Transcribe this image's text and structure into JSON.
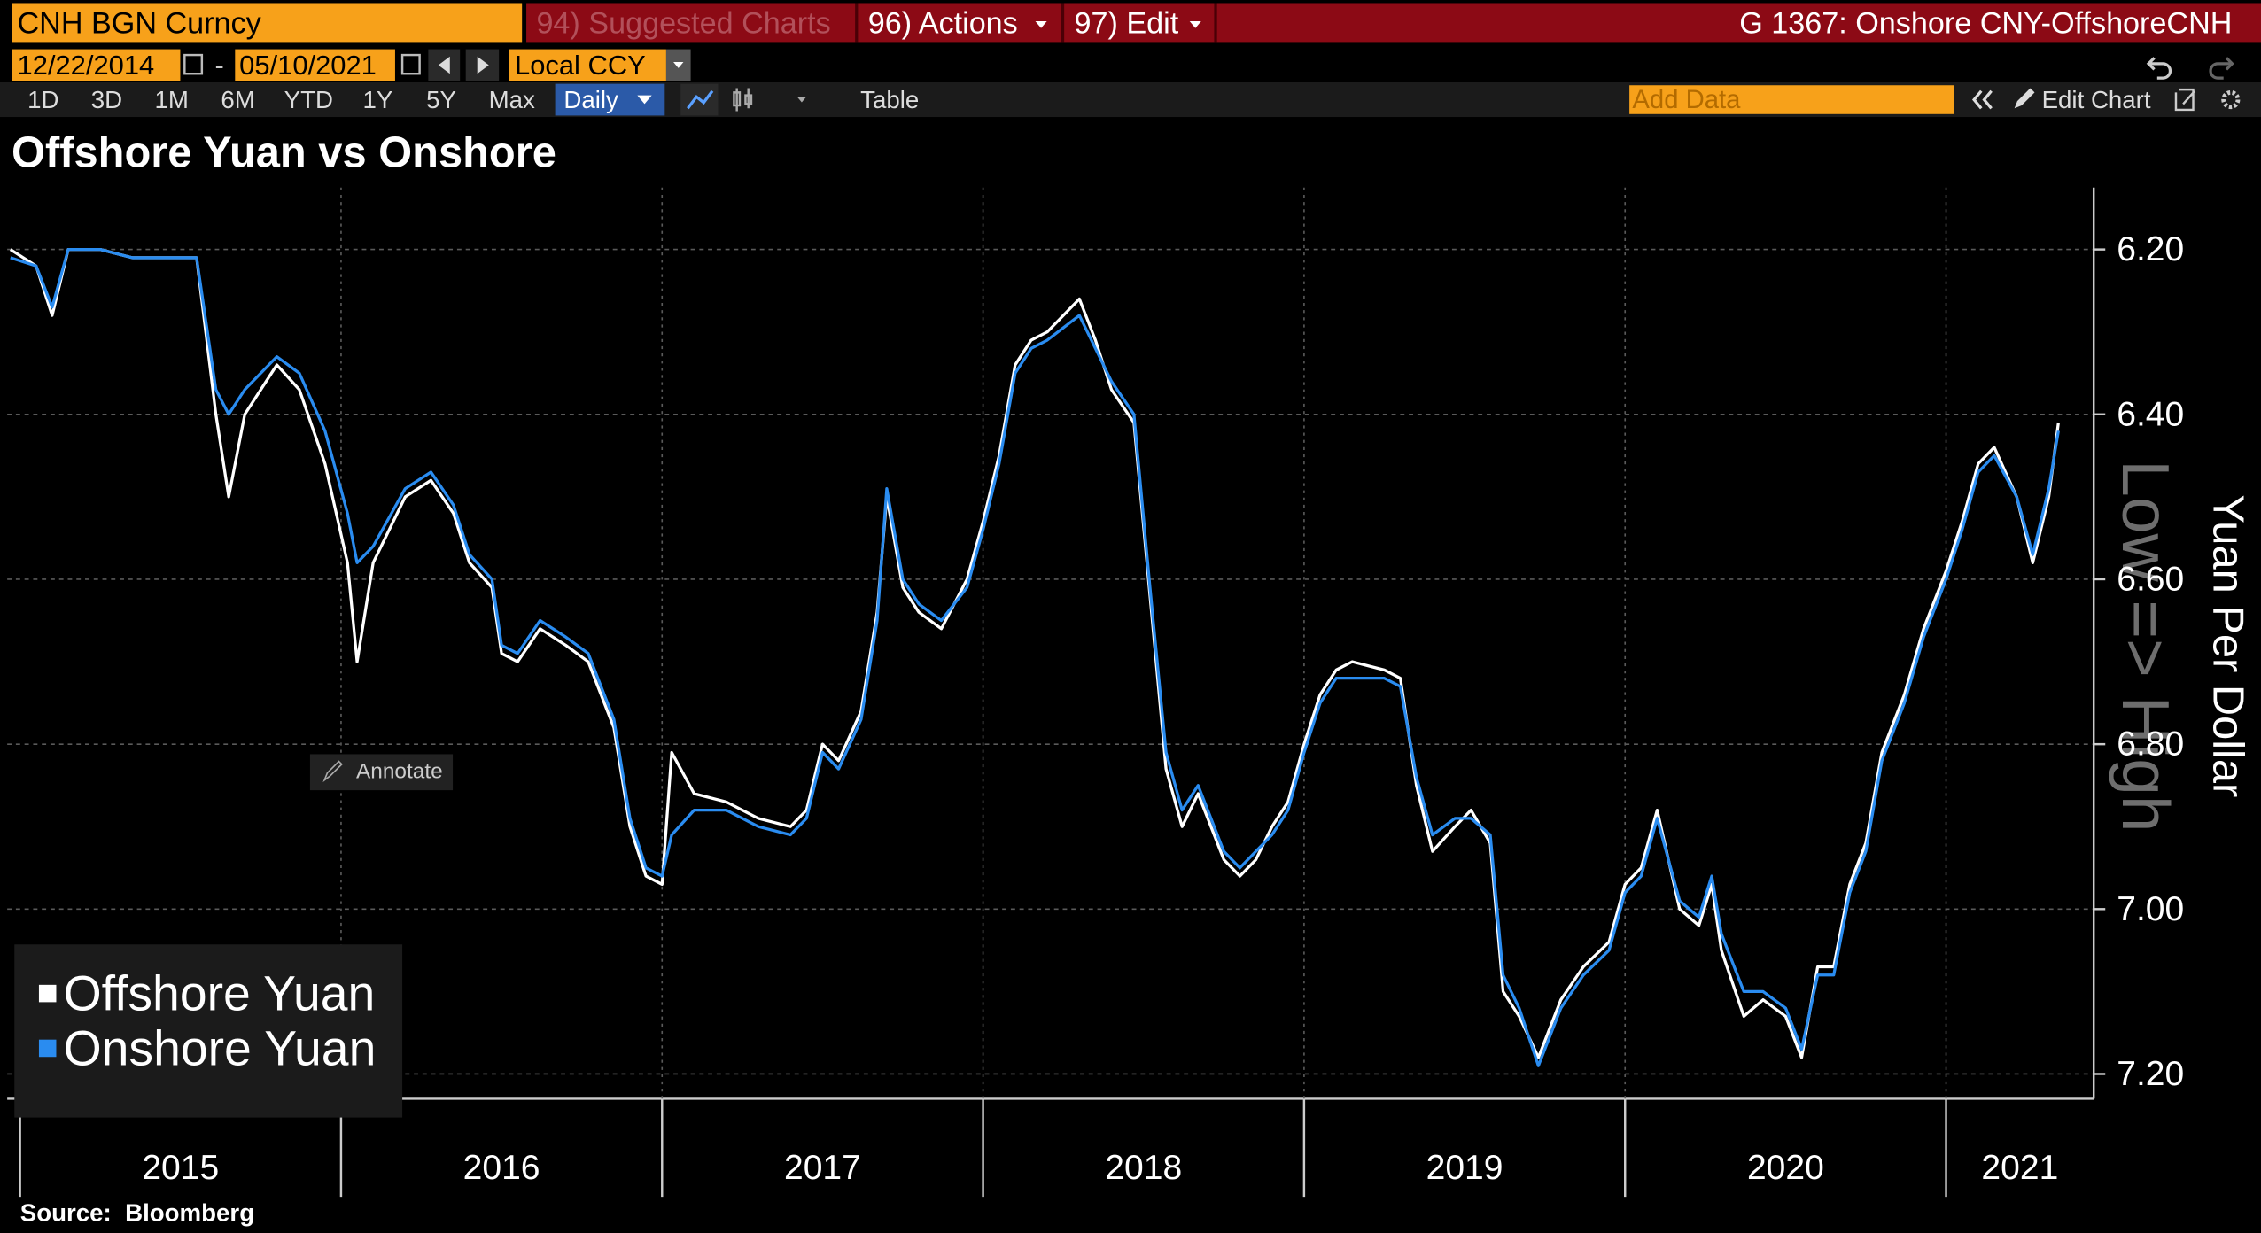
{
  "toolbar": {
    "security": "CNH BGN Curncy",
    "suggested_charts": "94) Suggested Charts",
    "actions": "96) Actions",
    "edit": "97) Edit",
    "chart_id": "G 1367: Onshore CNY-OffshoreCNH",
    "start_date": "12/22/2014",
    "date_separator": "-",
    "end_date": "05/10/2021",
    "currency": "Local CCY",
    "ranges": [
      "1D",
      "3D",
      "1M",
      "6M",
      "YTD",
      "1Y",
      "5Y",
      "Max"
    ],
    "frequency": "Daily",
    "table": "Table",
    "add_data": "Add Data",
    "edit_chart": "Edit Chart",
    "annotate": "Annotate"
  },
  "chart_data": {
    "type": "line",
    "title": "Offshore Yuan vs Onshore",
    "y_axis_label": "Yuan Per Dollar",
    "y_axis_watermark": "Low => High",
    "source": "Source:  Bloomberg",
    "xlim": [
      2014.96,
      2021.46
    ],
    "xticks": [
      2015,
      2016,
      2017,
      2018,
      2019,
      2020,
      2021
    ],
    "ylim": [
      7.23,
      6.125
    ],
    "yticks": [
      {
        "value": 6.2,
        "label": "6.20"
      },
      {
        "value": 6.4,
        "label": "6.40"
      },
      {
        "value": 6.6,
        "label": "6.60"
      },
      {
        "value": 6.8,
        "label": "6.80"
      },
      {
        "value": 7.0,
        "label": "7.00"
      },
      {
        "value": 7.2,
        "label": "7.20"
      }
    ],
    "grid": true,
    "legend": "bottom-left",
    "x": [
      2014.97,
      2015.05,
      2015.1,
      2015.15,
      2015.25,
      2015.35,
      2015.45,
      2015.55,
      2015.61,
      2015.65,
      2015.7,
      2015.8,
      2015.87,
      2015.95,
      2016.02,
      2016.05,
      2016.1,
      2016.2,
      2016.28,
      2016.35,
      2016.4,
      2016.47,
      2016.5,
      2016.55,
      2016.62,
      2016.7,
      2016.77,
      2016.85,
      2016.9,
      2016.95,
      2017,
      2017.03,
      2017.1,
      2017.2,
      2017.3,
      2017.4,
      2017.45,
      2017.5,
      2017.55,
      2017.62,
      2017.67,
      2017.7,
      2017.75,
      2017.8,
      2017.87,
      2017.95,
      2018,
      2018.05,
      2018.1,
      2018.15,
      2018.2,
      2018.3,
      2018.35,
      2018.4,
      2018.47,
      2018.52,
      2018.57,
      2018.62,
      2018.67,
      2018.75,
      2018.8,
      2018.85,
      2018.9,
      2018.95,
      2019,
      2019.05,
      2019.1,
      2019.15,
      2019.25,
      2019.3,
      2019.35,
      2019.4,
      2019.47,
      2019.52,
      2019.58,
      2019.62,
      2019.67,
      2019.73,
      2019.8,
      2019.87,
      2019.95,
      2020,
      2020.05,
      2020.1,
      2020.17,
      2020.23,
      2020.27,
      2020.3,
      2020.37,
      2020.43,
      2020.5,
      2020.55,
      2020.6,
      2020.65,
      2020.7,
      2020.75,
      2020.8,
      2020.87,
      2020.93,
      2021,
      2021.05,
      2021.1,
      2021.15,
      2021.22,
      2021.27,
      2021.32,
      2021.35
    ],
    "series": [
      {
        "name": "Offshore Yuan",
        "color": "#ffffff",
        "values": [
          6.2,
          6.22,
          6.28,
          6.2,
          6.2,
          6.21,
          6.21,
          6.21,
          6.4,
          6.5,
          6.4,
          6.34,
          6.37,
          6.46,
          6.58,
          6.7,
          6.58,
          6.5,
          6.48,
          6.52,
          6.58,
          6.61,
          6.69,
          6.7,
          6.66,
          6.68,
          6.7,
          6.78,
          6.9,
          6.96,
          6.97,
          6.81,
          6.86,
          6.87,
          6.89,
          6.9,
          6.88,
          6.8,
          6.82,
          6.76,
          6.64,
          6.5,
          6.61,
          6.64,
          6.66,
          6.6,
          6.53,
          6.45,
          6.34,
          6.31,
          6.3,
          6.26,
          6.31,
          6.37,
          6.41,
          6.62,
          6.83,
          6.9,
          6.86,
          6.94,
          6.96,
          6.94,
          6.9,
          6.87,
          6.8,
          6.74,
          6.71,
          6.7,
          6.71,
          6.72,
          6.85,
          6.93,
          6.9,
          6.88,
          6.92,
          7.1,
          7.13,
          7.18,
          7.11,
          7.07,
          7.04,
          6.97,
          6.95,
          6.88,
          7.0,
          7.02,
          6.97,
          7.05,
          7.13,
          7.11,
          7.13,
          7.18,
          7.07,
          7.07,
          6.97,
          6.92,
          6.81,
          6.74,
          6.66,
          6.59,
          6.53,
          6.46,
          6.44,
          6.5,
          6.58,
          6.5,
          6.41
        ]
      },
      {
        "name": "Onshore Yuan",
        "color": "#2a8cf0",
        "values": [
          6.21,
          6.22,
          6.27,
          6.2,
          6.2,
          6.21,
          6.21,
          6.21,
          6.37,
          6.4,
          6.37,
          6.33,
          6.35,
          6.42,
          6.52,
          6.58,
          6.56,
          6.49,
          6.47,
          6.51,
          6.57,
          6.6,
          6.68,
          6.69,
          6.65,
          6.67,
          6.69,
          6.77,
          6.89,
          6.95,
          6.96,
          6.91,
          6.88,
          6.88,
          6.9,
          6.91,
          6.89,
          6.81,
          6.83,
          6.77,
          6.65,
          6.49,
          6.6,
          6.63,
          6.65,
          6.61,
          6.54,
          6.46,
          6.35,
          6.32,
          6.31,
          6.28,
          6.32,
          6.36,
          6.4,
          6.61,
          6.81,
          6.88,
          6.85,
          6.93,
          6.95,
          6.93,
          6.91,
          6.88,
          6.81,
          6.75,
          6.72,
          6.72,
          6.72,
          6.73,
          6.84,
          6.91,
          6.89,
          6.89,
          6.91,
          7.08,
          7.12,
          7.19,
          7.12,
          7.08,
          7.05,
          6.98,
          6.96,
          6.89,
          6.99,
          7.01,
          6.96,
          7.03,
          7.1,
          7.1,
          7.12,
          7.17,
          7.08,
          7.08,
          6.98,
          6.93,
          6.82,
          6.75,
          6.67,
          6.6,
          6.54,
          6.47,
          6.45,
          6.5,
          6.57,
          6.49,
          6.42
        ]
      }
    ]
  }
}
